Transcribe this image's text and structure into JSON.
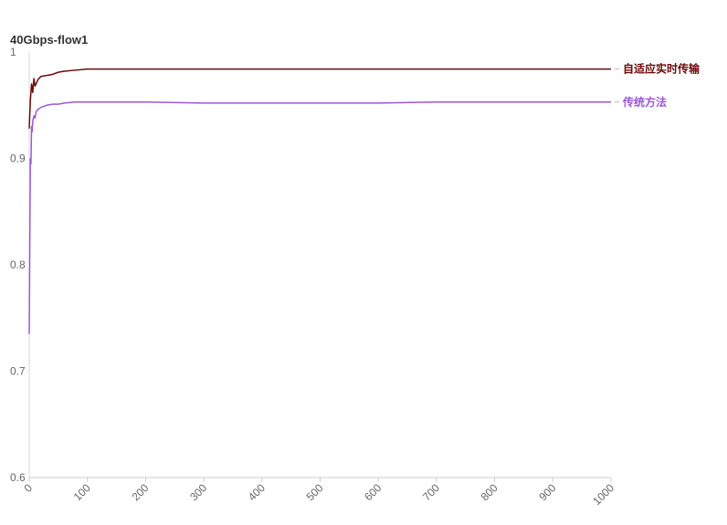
{
  "chart_data": {
    "type": "line",
    "title": "40Gbps-flow1",
    "xlabel": "",
    "ylabel": "",
    "xlim": [
      0,
      1000
    ],
    "ylim": [
      0.6,
      1
    ],
    "x_ticks": [
      0,
      100,
      200,
      300,
      400,
      500,
      600,
      700,
      800,
      900,
      1000
    ],
    "y_ticks": [
      0.6,
      0.7,
      0.8,
      0.9,
      1
    ],
    "y_tick_labels": [
      "0.6",
      "0.7",
      "0.8",
      "0.9",
      "1"
    ],
    "grid": false,
    "legend": "end-of-line labels",
    "series": [
      {
        "name": "自适应实时传输",
        "color": "#6b0a0a",
        "x": [
          0,
          2,
          4,
          6,
          8,
          10,
          15,
          20,
          30,
          40,
          50,
          60,
          80,
          100,
          125,
          150,
          200,
          300,
          400,
          500,
          600,
          700,
          800,
          900,
          1000
        ],
        "y": [
          0.928,
          0.955,
          0.97,
          0.962,
          0.975,
          0.968,
          0.974,
          0.977,
          0.978,
          0.979,
          0.981,
          0.982,
          0.983,
          0.984,
          0.984,
          0.984,
          0.984,
          0.984,
          0.984,
          0.984,
          0.984,
          0.984,
          0.984,
          0.984,
          0.984
        ]
      },
      {
        "name": "传统方法",
        "color": "#9b59d6",
        "x": [
          0,
          1,
          2,
          3,
          4,
          5,
          6,
          8,
          10,
          12,
          15,
          20,
          25,
          30,
          40,
          50,
          60,
          80,
          100,
          125,
          150,
          200,
          300,
          400,
          500,
          600,
          700,
          800,
          900,
          1000
        ],
        "y": [
          0.735,
          0.82,
          0.9,
          0.895,
          0.93,
          0.925,
          0.935,
          0.94,
          0.938,
          0.944,
          0.946,
          0.948,
          0.949,
          0.95,
          0.951,
          0.951,
          0.952,
          0.953,
          0.953,
          0.953,
          0.953,
          0.953,
          0.952,
          0.952,
          0.952,
          0.952,
          0.953,
          0.953,
          0.953,
          0.953
        ]
      }
    ]
  }
}
